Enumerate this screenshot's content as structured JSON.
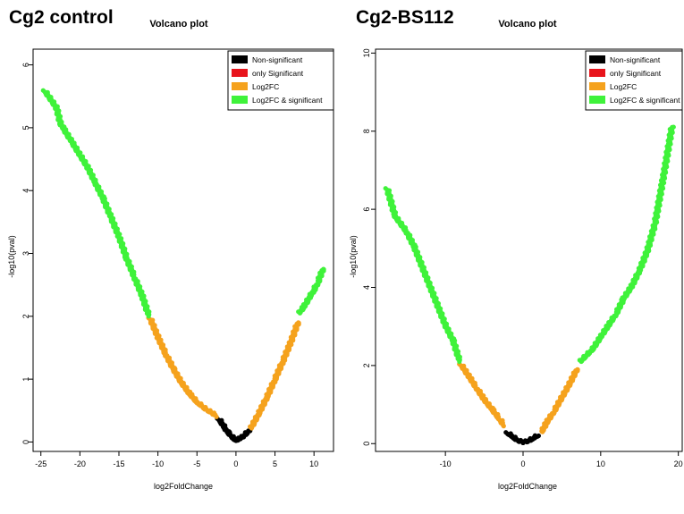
{
  "figure": {
    "left_label": "Cg2 control",
    "right_label": "Cg2-BS112"
  },
  "colors": {
    "non_significant": "#000000",
    "only_significant": "#e8141c",
    "log2fc": "#f5a21d",
    "log2fc_significant": "#3ff23a"
  },
  "chart_data": [
    {
      "type": "scatter",
      "title": "Volcano plot",
      "xlabel": "log2FoldChange",
      "ylabel": "-log10(pval)",
      "xlim": [
        -26,
        12.5
      ],
      "ylim": [
        -0.15,
        6.25
      ],
      "xticks": [
        -25,
        -20,
        -15,
        -10,
        -5,
        0,
        5,
        10
      ],
      "yticks": [
        0,
        1,
        2,
        3,
        4,
        5,
        6
      ],
      "legend_position": "top-right",
      "legend": [
        "Non-significant",
        "only Significant",
        "Log2FC",
        "Log2FC & significant"
      ],
      "series": [
        {
          "name": "Non-significant",
          "color": "#000000",
          "x": [
            -2.2,
            -1.8,
            -1.4,
            -1.0,
            -0.6,
            -0.3,
            0,
            0.3,
            0.6,
            1.0,
            1.4,
            1.8
          ],
          "y": [
            0.35,
            0.28,
            0.2,
            0.13,
            0.08,
            0.04,
            0.02,
            0.03,
            0.05,
            0.08,
            0.13,
            0.18
          ]
        },
        {
          "name": "only Significant",
          "color": "#e8141c",
          "x": [],
          "y": []
        },
        {
          "name": "Log2FC",
          "color": "#f5a21d",
          "x": [
            -11,
            -10,
            -9,
            -8,
            -7,
            -6,
            -5,
            -4,
            -3,
            -2.5,
            2,
            3,
            4,
            5,
            6,
            7,
            8
          ],
          "y": [
            1.95,
            1.65,
            1.38,
            1.14,
            0.93,
            0.76,
            0.62,
            0.52,
            0.44,
            0.4,
            0.22,
            0.45,
            0.7,
            0.98,
            1.26,
            1.56,
            1.9
          ]
        },
        {
          "name": "Log2FC & significant",
          "color": "#3ff23a",
          "x": [
            -24.5,
            -23,
            -22.5,
            -22,
            -21,
            -20,
            -19,
            -18,
            -17,
            -16,
            -15,
            -14,
            -13,
            -12,
            -11.2,
            8.2,
            8.8,
            9.5,
            10,
            10.5,
            11.2
          ],
          "y": [
            5.57,
            5.3,
            5.05,
            4.95,
            4.75,
            4.55,
            4.35,
            4.1,
            3.85,
            3.55,
            3.25,
            2.9,
            2.6,
            2.3,
            2.0,
            2.05,
            2.15,
            2.3,
            2.4,
            2.52,
            2.75
          ]
        }
      ]
    },
    {
      "type": "scatter",
      "title": "Volcano plot",
      "xlabel": "log2FoldChange",
      "ylabel": "-log10(pval)",
      "xlim": [
        -19,
        20.5
      ],
      "ylim": [
        -0.2,
        10.1
      ],
      "xticks": [
        -10,
        0,
        10,
        20
      ],
      "yticks": [
        0,
        2,
        4,
        6,
        8,
        10
      ],
      "legend_position": "top-right",
      "legend": [
        "Non-significant",
        "only Significant",
        "Log2FC",
        "Log2FC & significant"
      ],
      "series": [
        {
          "name": "Non-significant",
          "color": "#000000",
          "x": [
            -2,
            -1.5,
            -1,
            -0.5,
            0,
            0.5,
            1,
            1.5,
            2
          ],
          "y": [
            0.25,
            0.18,
            0.1,
            0.05,
            0.02,
            0.04,
            0.08,
            0.14,
            0.2
          ]
        },
        {
          "name": "only Significant",
          "color": "#e8141c",
          "x": [],
          "y": []
        },
        {
          "name": "Log2FC",
          "color": "#f5a21d",
          "x": [
            -8,
            -7,
            -6,
            -5,
            -4,
            -3,
            -2.5,
            2.5,
            3,
            4,
            5,
            6,
            7
          ],
          "y": [
            2.0,
            1.7,
            1.4,
            1.1,
            0.85,
            0.6,
            0.45,
            0.3,
            0.5,
            0.8,
            1.15,
            1.5,
            1.9
          ]
        },
        {
          "name": "Log2FC & significant",
          "color": "#3ff23a",
          "x": [
            -17.5,
            -16.5,
            -15,
            -14,
            -13,
            -12,
            -11,
            -10,
            -9,
            -8.2,
            7.5,
            9,
            10,
            11,
            12,
            13,
            14,
            15,
            16,
            17,
            18,
            19.2
          ],
          "y": [
            6.5,
            5.8,
            5.4,
            5.0,
            4.5,
            4.0,
            3.5,
            3.0,
            2.6,
            2.1,
            2.1,
            2.4,
            2.7,
            3.0,
            3.3,
            3.7,
            4.0,
            4.4,
            4.9,
            5.6,
            6.7,
            8.1
          ]
        }
      ]
    }
  ]
}
